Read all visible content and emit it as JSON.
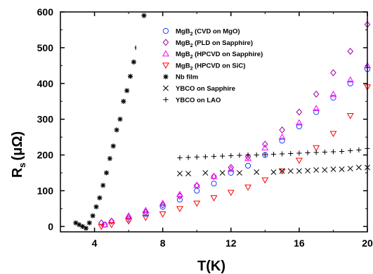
{
  "chart_data": {
    "type": "scatter",
    "title": "",
    "xlabel": "T(K)",
    "ylabel_main": "R",
    "ylabel_sub": "s",
    "ylabel_unit": "(μΩ)",
    "xlim": [
      2,
      20
    ],
    "ylim": [
      -15,
      600
    ],
    "xticks": [
      4,
      8,
      12,
      16,
      20
    ],
    "yticks": [
      0,
      100,
      200,
      300,
      400,
      500,
      600
    ],
    "grid": false,
    "legend_placement": "top-center",
    "series": [
      {
        "name_parts": [
          "MgB",
          "2",
          " (CVD on MgO)"
        ],
        "marker": "circle",
        "color": "#1f3fff",
        "x": [
          4.6,
          6.0,
          7.0,
          8.0,
          9.0,
          10.0,
          11.0,
          12.0,
          13.0,
          14.0,
          15.0,
          16.0,
          17.0,
          18.0,
          19.0,
          20.0
        ],
        "y": [
          5,
          20,
          35,
          55,
          75,
          100,
          120,
          150,
          170,
          200,
          240,
          280,
          320,
          360,
          400,
          440
        ]
      },
      {
        "name_parts": [
          "MgB",
          "2",
          " (PLD on Sapphire)"
        ],
        "marker": "diamond",
        "color": "#990099",
        "x": [
          4.4,
          5.0,
          6.0,
          7.0,
          8.0,
          9.0,
          10.0,
          11.0,
          12.0,
          13.0,
          14.0,
          15.0,
          16.0,
          17.0,
          18.0,
          19.0,
          20.0
        ],
        "y": [
          10,
          15,
          25,
          40,
          60,
          85,
          115,
          140,
          165,
          195,
          230,
          270,
          320,
          370,
          430,
          490,
          565
        ]
      },
      {
        "name_parts": [
          "MgB",
          "2",
          " (HPCVD on Sapphire)"
        ],
        "marker": "triangle-up",
        "color": "#ff00ff",
        "x": [
          4.6,
          5.0,
          6.0,
          7.0,
          8.0,
          9.0,
          10.0,
          11.0,
          12.0,
          13.0,
          14.0,
          15.0,
          16.0,
          17.0,
          18.0,
          19.0,
          20.0
        ],
        "y": [
          5,
          15,
          30,
          45,
          65,
          90,
          115,
          140,
          160,
          190,
          220,
          250,
          290,
          330,
          370,
          410,
          450
        ]
      },
      {
        "name_parts": [
          "MgB",
          "2",
          " (HPCVD on SiC)"
        ],
        "marker": "triangle-down",
        "color": "#ff0000",
        "x": [
          4.4,
          5.0,
          6.0,
          7.0,
          8.0,
          9.0,
          10.0,
          11.0,
          12.0,
          13.0,
          14.0,
          15.0,
          16.0,
          17.0,
          18.0,
          19.0,
          20.0
        ],
        "y": [
          0,
          5,
          15,
          25,
          35,
          50,
          65,
          80,
          95,
          110,
          130,
          155,
          185,
          220,
          260,
          310,
          390
        ]
      },
      {
        "name_parts": [
          "Nb film"
        ],
        "marker": "asterisk",
        "color": "#000000",
        "x": [
          2.9,
          3.1,
          3.3,
          3.5,
          3.7,
          3.9,
          4.1,
          4.3,
          4.5,
          4.7,
          4.9,
          5.1,
          5.3,
          5.5,
          5.7,
          5.9,
          6.1,
          6.3,
          6.5,
          6.7,
          6.9
        ],
        "y": [
          10,
          5,
          0,
          -5,
          10,
          30,
          55,
          80,
          115,
          150,
          190,
          225,
          270,
          300,
          350,
          380,
          420,
          460,
          500,
          540,
          590
        ]
      },
      {
        "name_parts": [
          "YBCO on Sapphire"
        ],
        "marker": "x-cross",
        "color": "#000000",
        "x": [
          9.0,
          9.5,
          10.5,
          11.5,
          12.5,
          13.5,
          14.5,
          15.0,
          15.5,
          16.0,
          16.5,
          17.0,
          17.5,
          18.0,
          18.5,
          19.0,
          19.5,
          20.0
        ],
        "y": [
          148,
          148,
          150,
          150,
          150,
          152,
          152,
          155,
          155,
          155,
          156,
          158,
          158,
          160,
          160,
          162,
          165,
          165
        ]
      },
      {
        "name_parts": [
          "YBCO on LAO"
        ],
        "marker": "plus",
        "color": "#000000",
        "x": [
          9.0,
          9.5,
          10.0,
          10.5,
          11.0,
          11.5,
          12.0,
          12.5,
          13.0,
          13.5,
          14.0,
          14.5,
          15.0,
          15.5,
          16.0,
          16.5,
          17.0,
          17.5,
          18.0,
          18.5,
          19.0,
          19.5,
          20.0
        ],
        "y": [
          192,
          193,
          194,
          195,
          196,
          197,
          198,
          199,
          200,
          200,
          201,
          202,
          203,
          204,
          205,
          206,
          207,
          208,
          209,
          210,
          212,
          214,
          218
        ]
      }
    ]
  }
}
